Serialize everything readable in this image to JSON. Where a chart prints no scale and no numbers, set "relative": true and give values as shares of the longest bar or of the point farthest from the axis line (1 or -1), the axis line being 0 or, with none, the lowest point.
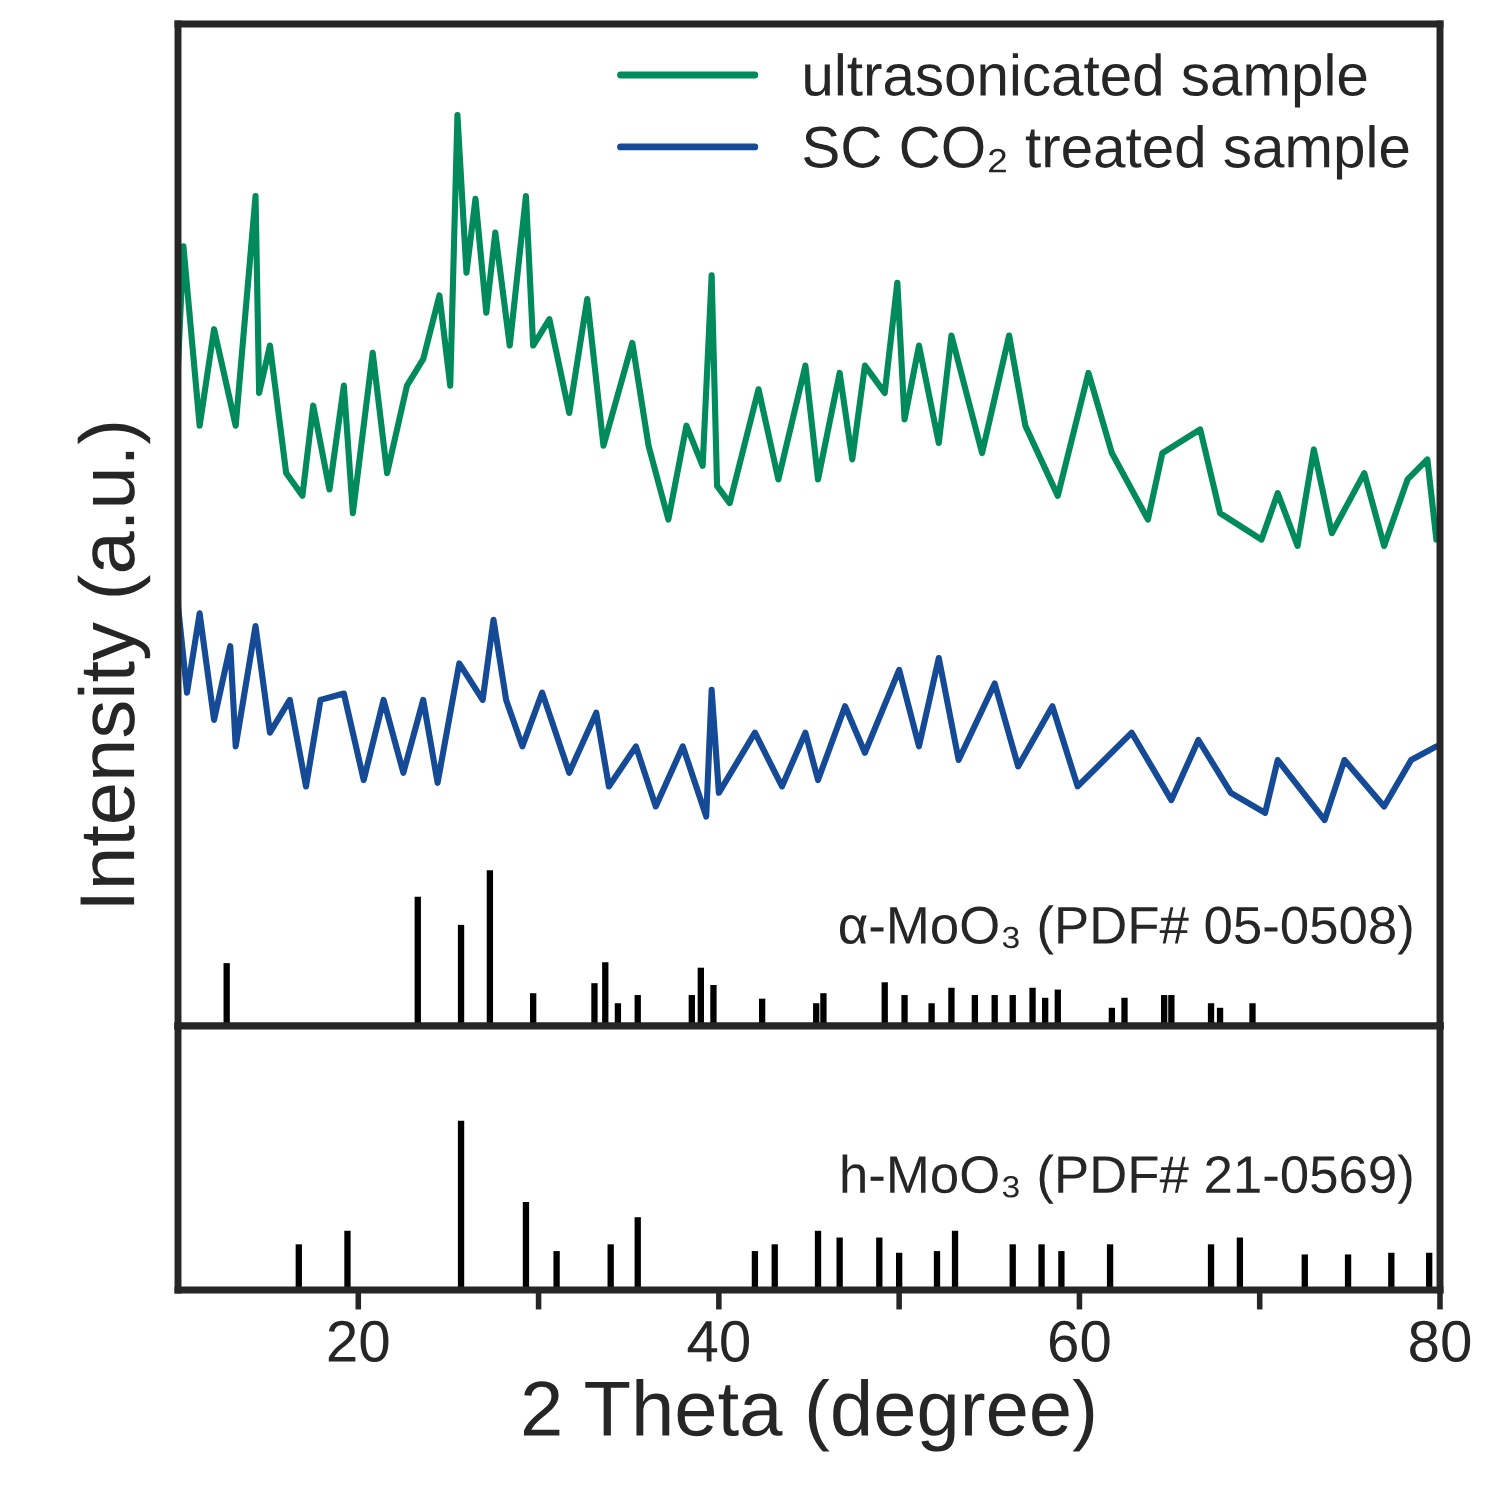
{
  "chart_data": [
    {
      "type": "line",
      "relative": true,
      "ylabel": "Intensity (a.u.)",
      "xlim": [
        10,
        80
      ],
      "tick_labels": false,
      "legend": "top right",
      "annotations": [
        "α-MoO₃ (PDF# 05-0508)"
      ],
      "series": [
        {
          "name": "ultrasonicated sample",
          "color": "#018a5c",
          "x": [
            10.0,
            10.3,
            11.2,
            12.0,
            13.2,
            14.3,
            14.5,
            15.1,
            16.0,
            16.9,
            17.5,
            18.4,
            19.2,
            19.7,
            20.8,
            21.6,
            22.7,
            23.6,
            24.5,
            25.1,
            25.5,
            26.0,
            26.5,
            27.1,
            27.6,
            28.4,
            29.3,
            29.7,
            30.6,
            31.7,
            32.7,
            33.6,
            35.2,
            36.1,
            37.2,
            38.2,
            39.1,
            39.6,
            39.9,
            40.6,
            42.2,
            43.3,
            44.8,
            45.5,
            46.7,
            47.4,
            48.1,
            49.2,
            49.9,
            50.3,
            51.1,
            52.2,
            52.9,
            54.6,
            56.1,
            57.0,
            58.8,
            60.5,
            61.8,
            63.8,
            64.6,
            66.7,
            67.8,
            70.1,
            71.0,
            72.1,
            73.0,
            74.0,
            75.8,
            76.9,
            78.2,
            79.3,
            79.8
          ],
          "values": [
            0.725,
            0.856,
            0.659,
            0.765,
            0.659,
            0.911,
            0.695,
            0.747,
            0.607,
            0.582,
            0.681,
            0.589,
            0.703,
            0.563,
            0.739,
            0.607,
            0.703,
            0.732,
            0.802,
            0.703,
            1.0,
            0.827,
            0.908,
            0.783,
            0.871,
            0.747,
            0.911,
            0.747,
            0.776,
            0.673,
            0.798,
            0.637,
            0.75,
            0.637,
            0.556,
            0.659,
            0.615,
            0.824,
            0.593,
            0.574,
            0.699,
            0.6,
            0.725,
            0.6,
            0.717,
            0.622,
            0.725,
            0.695,
            0.816,
            0.666,
            0.747,
            0.64,
            0.758,
            0.629,
            0.758,
            0.659,
            0.582,
            0.717,
            0.629,
            0.556,
            0.629,
            0.655,
            0.563,
            0.534,
            0.585,
            0.527,
            0.633,
            0.541,
            0.607,
            0.527,
            0.6,
            0.622,
            0.534
          ]
        },
        {
          "name": "SC CO₂ treated sample",
          "color": "#154a96",
          "x": [
            10.0,
            10.5,
            11.2,
            12.0,
            12.9,
            13.2,
            14.3,
            15.1,
            16.2,
            17.1,
            17.9,
            19.2,
            20.3,
            21.4,
            22.5,
            23.6,
            24.4,
            25.6,
            26.9,
            27.5,
            28.2,
            29.1,
            30.2,
            31.7,
            33.2,
            33.9,
            35.4,
            36.5,
            38.0,
            39.3,
            39.6,
            40.0,
            42.0,
            43.5,
            44.8,
            45.5,
            47.0,
            48.1,
            50.0,
            51.1,
            52.2,
            53.3,
            55.3,
            56.6,
            58.5,
            59.9,
            62.9,
            65.1,
            66.6,
            68.4,
            70.3,
            71.0,
            73.6,
            74.7,
            76.9,
            78.4,
            79.8
          ],
          "values": [
            0.461,
            0.366,
            0.453,
            0.336,
            0.417,
            0.307,
            0.439,
            0.322,
            0.358,
            0.263,
            0.358,
            0.365,
            0.27,
            0.358,
            0.278,
            0.358,
            0.267,
            0.398,
            0.358,
            0.446,
            0.358,
            0.307,
            0.366,
            0.278,
            0.344,
            0.263,
            0.307,
            0.241,
            0.307,
            0.23,
            0.369,
            0.256,
            0.322,
            0.263,
            0.322,
            0.27,
            0.351,
            0.3,
            0.391,
            0.307,
            0.404,
            0.292,
            0.376,
            0.285,
            0.351,
            0.263,
            0.322,
            0.248,
            0.314,
            0.256,
            0.234,
            0.292,
            0.226,
            0.292,
            0.241,
            0.292,
            0.307
          ]
        },
        {
          "type": "bar",
          "color": "#000000",
          "x": [
            12.7,
            23.3,
            25.7,
            27.3,
            29.7,
            33.1,
            33.7,
            34.4,
            35.5,
            38.5,
            39.0,
            39.7,
            42.4,
            45.4,
            45.8,
            49.2,
            50.3,
            51.8,
            52.9,
            54.2,
            55.3,
            56.3,
            57.4,
            58.1,
            58.8,
            61.8,
            62.5,
            64.7,
            65.1,
            67.3,
            67.8,
            69.6
          ],
          "values": [
            0.069,
            0.142,
            0.111,
            0.171,
            0.036,
            0.047,
            0.07,
            0.025,
            0.034,
            0.034,
            0.064,
            0.045,
            0.03,
            0.025,
            0.036,
            0.048,
            0.034,
            0.025,
            0.042,
            0.034,
            0.034,
            0.034,
            0.042,
            0.031,
            0.04,
            0.02,
            0.031,
            0.034,
            0.034,
            0.025,
            0.02,
            0.025
          ]
        }
      ]
    },
    {
      "type": "bar",
      "relative": true,
      "xlabel": "2 Theta (degree)",
      "xlim": [
        10,
        80
      ],
      "xticks": [
        20,
        {
          "value": 30,
          "label": null
        },
        40,
        {
          "value": 50,
          "label": null
        },
        60,
        {
          "value": 70,
          "label": null
        },
        80
      ],
      "tick_labels": "x",
      "annotations": [
        "h-MoO₃ (PDF# 21-0569)"
      ],
      "series": [
        {
          "color": "#000000",
          "x": [
            16.7,
            19.4,
            25.7,
            29.3,
            31.0,
            34.0,
            35.5,
            42.0,
            43.1,
            45.5,
            46.7,
            48.9,
            50.0,
            52.1,
            53.1,
            56.3,
            57.9,
            59.0,
            61.7,
            67.3,
            68.9,
            72.5,
            74.9,
            77.3,
            79.4
          ],
          "values": [
            0.27,
            0.35,
            1,
            0.52,
            0.23,
            0.27,
            0.43,
            0.23,
            0.27,
            0.35,
            0.31,
            0.31,
            0.22,
            0.23,
            0.35,
            0.27,
            0.27,
            0.23,
            0.27,
            0.27,
            0.31,
            0.21,
            0.21,
            0.22,
            0.22
          ]
        }
      ]
    }
  ]
}
